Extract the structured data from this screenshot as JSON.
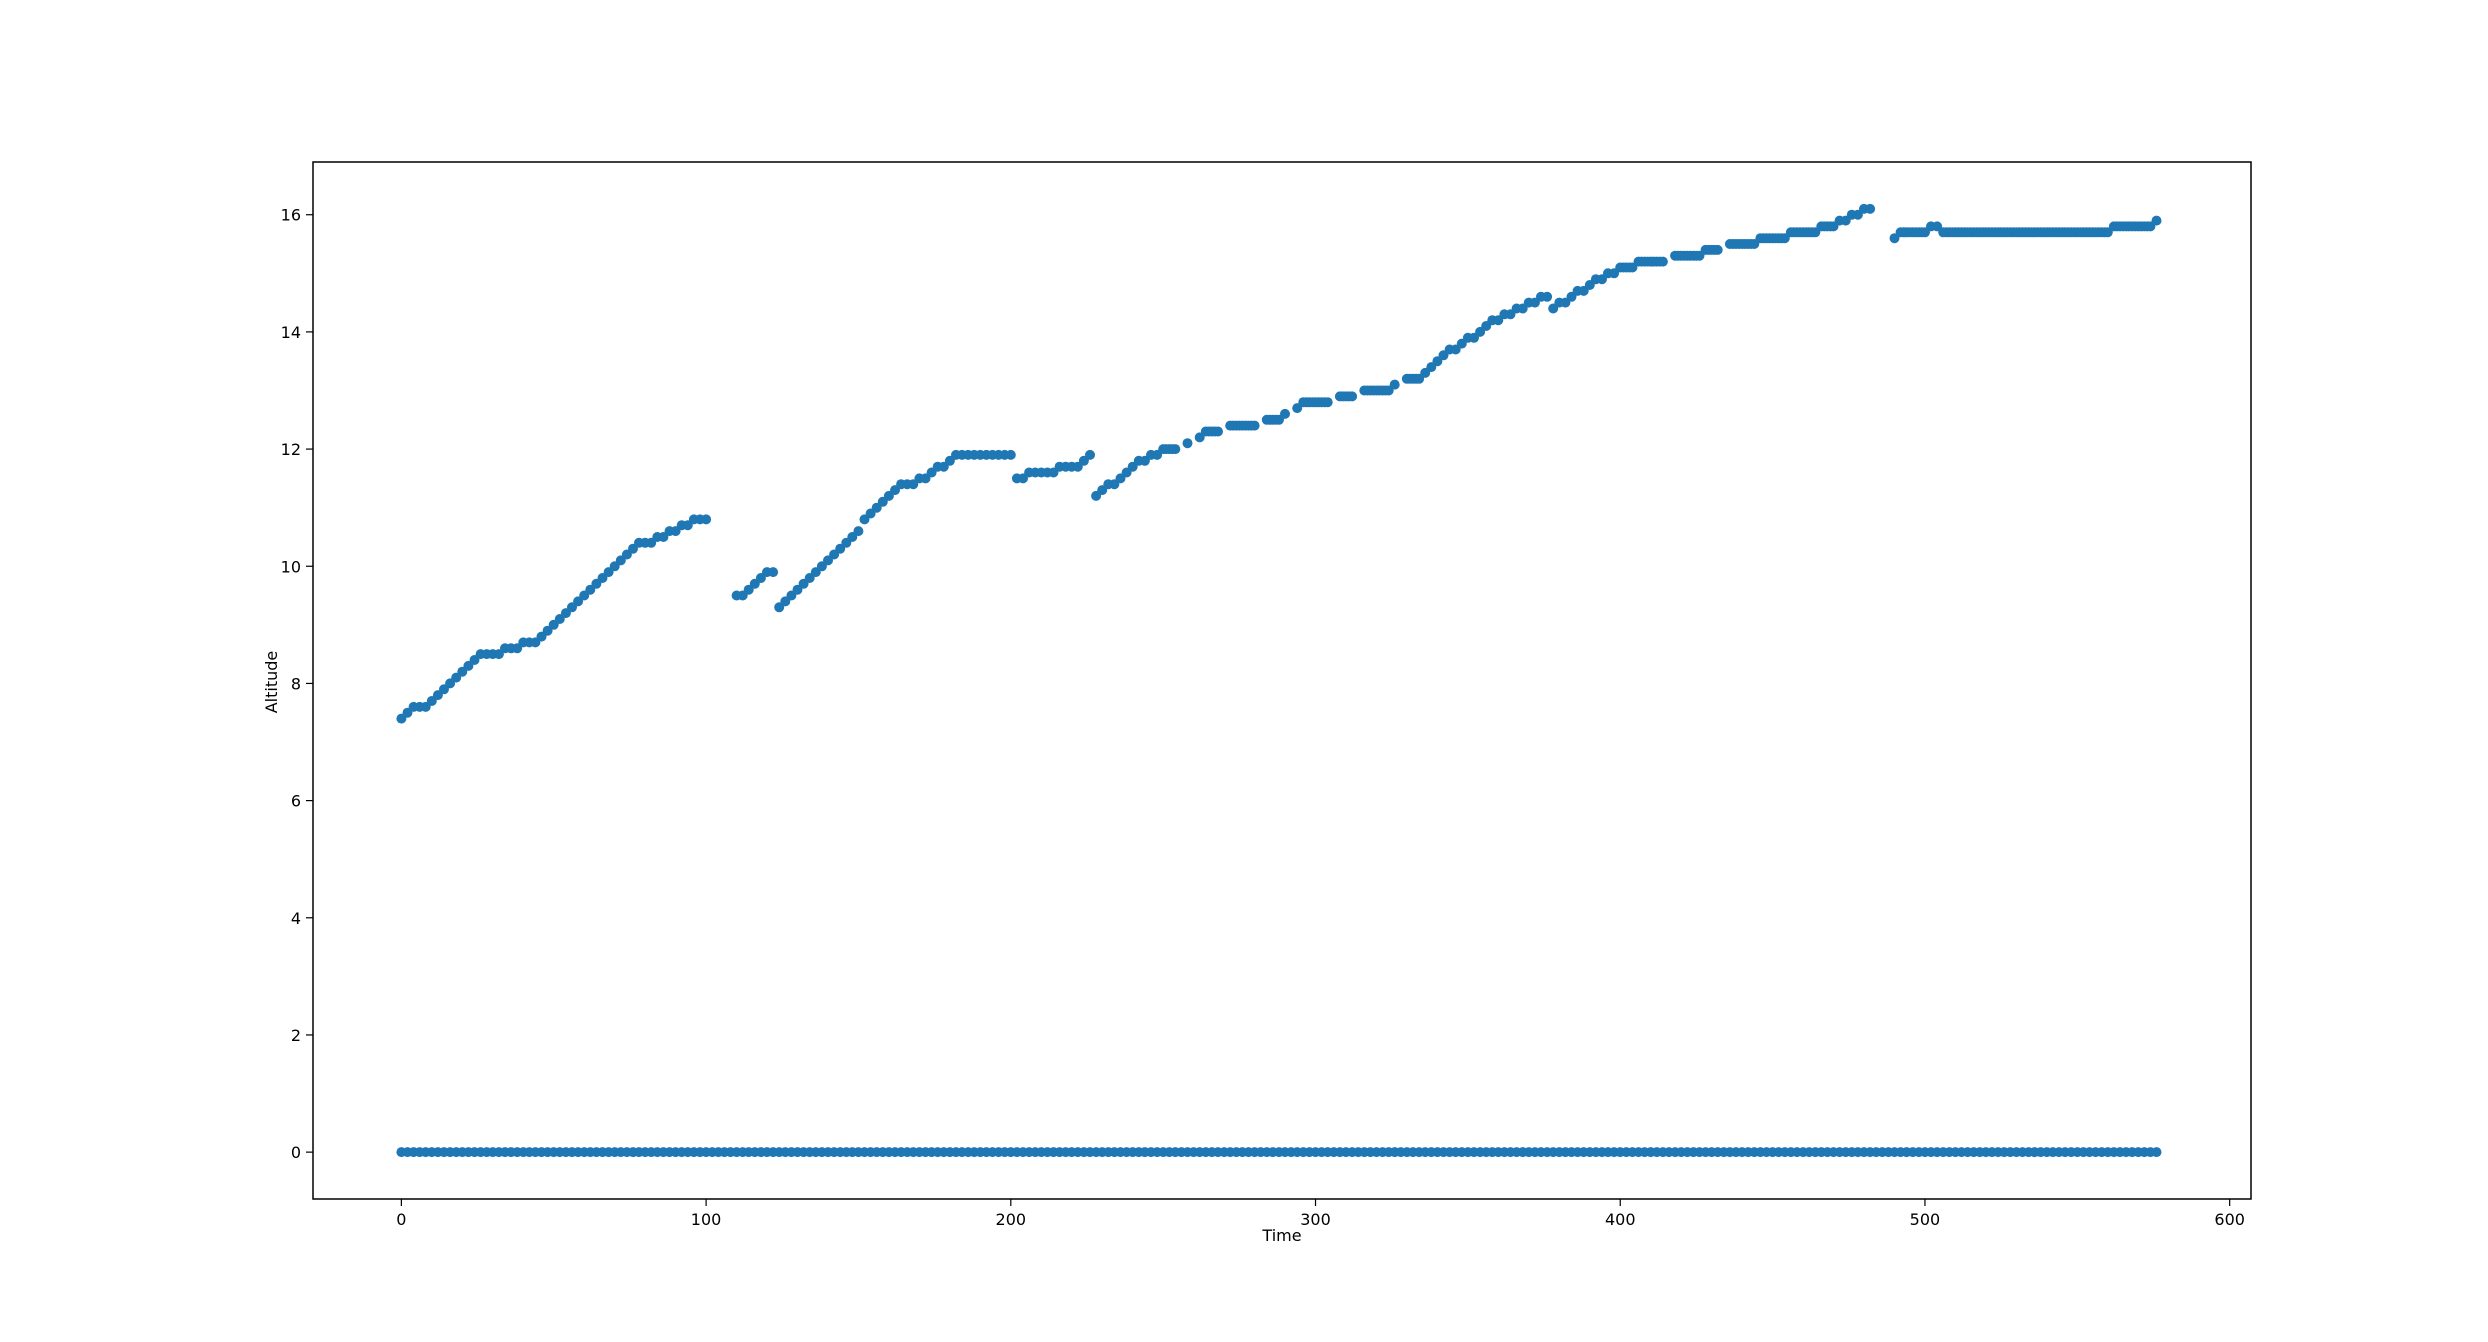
{
  "chart_data": {
    "type": "scatter",
    "xlabel": "Time",
    "ylabel": "Altitude",
    "xlim": [
      -29,
      607
    ],
    "ylim": [
      -0.8,
      16.9
    ],
    "xticks": [
      0,
      100,
      200,
      300,
      400,
      500,
      600
    ],
    "yticks": [
      0,
      2,
      4,
      6,
      8,
      10,
      12,
      14,
      16
    ],
    "grid": false,
    "marker_color": "#1f77b4",
    "series": [
      {
        "values_description_free": true,
        "points": [
          [
            0,
            0
          ],
          [
            576,
            0
          ],
          [
            0,
            7.4
          ],
          [
            2,
            7.5
          ],
          [
            4,
            7.6
          ],
          [
            6,
            7.6
          ],
          [
            8,
            7.6
          ],
          [
            10,
            7.7
          ],
          [
            12,
            7.8
          ],
          [
            14,
            7.9
          ],
          [
            16,
            8.0
          ],
          [
            18,
            8.1
          ],
          [
            20,
            8.2
          ],
          [
            22,
            8.3
          ],
          [
            24,
            8.4
          ],
          [
            26,
            8.5
          ],
          [
            28,
            8.5
          ],
          [
            30,
            8.5
          ],
          [
            32,
            8.5
          ],
          [
            34,
            8.6
          ],
          [
            36,
            8.6
          ],
          [
            38,
            8.6
          ],
          [
            40,
            8.7
          ],
          [
            42,
            8.7
          ],
          [
            44,
            8.7
          ],
          [
            46,
            8.8
          ],
          [
            48,
            8.9
          ],
          [
            50,
            9.0
          ],
          [
            52,
            9.1
          ],
          [
            54,
            9.2
          ],
          [
            56,
            9.3
          ],
          [
            58,
            9.4
          ],
          [
            60,
            9.5
          ],
          [
            62,
            9.6
          ],
          [
            64,
            9.7
          ],
          [
            66,
            9.8
          ],
          [
            68,
            9.9
          ],
          [
            70,
            10.0
          ],
          [
            72,
            10.1
          ],
          [
            74,
            10.2
          ],
          [
            76,
            10.3
          ],
          [
            78,
            10.4
          ],
          [
            80,
            10.4
          ],
          [
            82,
            10.4
          ],
          [
            84,
            10.5
          ],
          [
            86,
            10.5
          ],
          [
            88,
            10.6
          ],
          [
            90,
            10.6
          ],
          [
            92,
            10.7
          ],
          [
            94,
            10.7
          ],
          [
            96,
            10.8
          ],
          [
            98,
            10.8
          ],
          [
            100,
            10.8
          ],
          [
            110,
            9.5
          ],
          [
            112,
            9.5
          ],
          [
            114,
            9.6
          ],
          [
            116,
            9.7
          ],
          [
            118,
            9.8
          ],
          [
            120,
            9.9
          ],
          [
            122,
            9.9
          ],
          [
            124,
            9.3
          ],
          [
            126,
            9.4
          ],
          [
            128,
            9.5
          ],
          [
            130,
            9.6
          ],
          [
            132,
            9.7
          ],
          [
            134,
            9.8
          ],
          [
            136,
            9.9
          ],
          [
            138,
            10.0
          ],
          [
            140,
            10.1
          ],
          [
            142,
            10.2
          ],
          [
            144,
            10.3
          ],
          [
            146,
            10.4
          ],
          [
            148,
            10.5
          ],
          [
            150,
            10.6
          ],
          [
            152,
            10.8
          ],
          [
            154,
            10.9
          ],
          [
            156,
            11.0
          ],
          [
            158,
            11.1
          ],
          [
            160,
            11.2
          ],
          [
            162,
            11.3
          ],
          [
            164,
            11.4
          ],
          [
            166,
            11.4
          ],
          [
            168,
            11.4
          ],
          [
            170,
            11.5
          ],
          [
            172,
            11.5
          ],
          [
            174,
            11.6
          ],
          [
            176,
            11.7
          ],
          [
            178,
            11.7
          ],
          [
            180,
            11.8
          ],
          [
            182,
            11.9
          ],
          [
            184,
            11.9
          ],
          [
            186,
            11.9
          ],
          [
            188,
            11.9
          ],
          [
            190,
            11.9
          ],
          [
            192,
            11.9
          ],
          [
            194,
            11.9
          ],
          [
            196,
            11.9
          ],
          [
            198,
            11.9
          ],
          [
            200,
            11.9
          ],
          [
            202,
            11.5
          ],
          [
            204,
            11.5
          ],
          [
            206,
            11.6
          ],
          [
            208,
            11.6
          ],
          [
            210,
            11.6
          ],
          [
            212,
            11.6
          ],
          [
            214,
            11.6
          ],
          [
            216,
            11.7
          ],
          [
            218,
            11.7
          ],
          [
            220,
            11.7
          ],
          [
            222,
            11.7
          ],
          [
            224,
            11.8
          ],
          [
            226,
            11.9
          ],
          [
            228,
            11.2
          ],
          [
            230,
            11.3
          ],
          [
            232,
            11.4
          ],
          [
            234,
            11.4
          ],
          [
            236,
            11.5
          ],
          [
            238,
            11.6
          ],
          [
            240,
            11.7
          ],
          [
            242,
            11.8
          ],
          [
            244,
            11.8
          ],
          [
            246,
            11.9
          ],
          [
            248,
            11.9
          ],
          [
            250,
            12.0
          ],
          [
            254,
            12.0
          ],
          [
            258,
            12.1
          ],
          [
            262,
            12.2
          ],
          [
            264,
            12.3
          ],
          [
            268,
            12.3
          ],
          [
            272,
            12.4
          ],
          [
            276,
            12.4
          ],
          [
            280,
            12.4
          ],
          [
            284,
            12.5
          ],
          [
            288,
            12.5
          ],
          [
            290,
            12.6
          ],
          [
            294,
            12.7
          ],
          [
            296,
            12.8
          ],
          [
            300,
            12.8
          ],
          [
            304,
            12.8
          ],
          [
            308,
            12.9
          ],
          [
            312,
            12.9
          ],
          [
            316,
            13.0
          ],
          [
            320,
            13.0
          ],
          [
            324,
            13.0
          ],
          [
            326,
            13.1
          ],
          [
            330,
            13.2
          ],
          [
            334,
            13.2
          ],
          [
            336,
            13.3
          ],
          [
            338,
            13.4
          ],
          [
            340,
            13.5
          ],
          [
            342,
            13.6
          ],
          [
            344,
            13.7
          ],
          [
            346,
            13.7
          ],
          [
            348,
            13.8
          ],
          [
            350,
            13.9
          ],
          [
            352,
            13.9
          ],
          [
            354,
            14.0
          ],
          [
            356,
            14.1
          ],
          [
            358,
            14.2
          ],
          [
            360,
            14.2
          ],
          [
            362,
            14.3
          ],
          [
            364,
            14.3
          ],
          [
            366,
            14.4
          ],
          [
            368,
            14.4
          ],
          [
            370,
            14.5
          ],
          [
            372,
            14.5
          ],
          [
            374,
            14.6
          ],
          [
            376,
            14.6
          ],
          [
            378,
            14.4
          ],
          [
            380,
            14.5
          ],
          [
            382,
            14.5
          ],
          [
            384,
            14.6
          ],
          [
            386,
            14.7
          ],
          [
            388,
            14.7
          ],
          [
            390,
            14.8
          ],
          [
            392,
            14.9
          ],
          [
            394,
            14.9
          ],
          [
            396,
            15.0
          ],
          [
            398,
            15.0
          ],
          [
            400,
            15.1
          ],
          [
            404,
            15.1
          ],
          [
            406,
            15.2
          ],
          [
            410,
            15.2
          ],
          [
            414,
            15.2
          ],
          [
            418,
            15.3
          ],
          [
            422,
            15.3
          ],
          [
            426,
            15.3
          ],
          [
            428,
            15.4
          ],
          [
            432,
            15.4
          ],
          [
            436,
            15.5
          ],
          [
            440,
            15.5
          ],
          [
            444,
            15.5
          ],
          [
            446,
            15.6
          ],
          [
            450,
            15.6
          ],
          [
            454,
            15.6
          ],
          [
            456,
            15.7
          ],
          [
            460,
            15.7
          ],
          [
            464,
            15.7
          ],
          [
            466,
            15.8
          ],
          [
            470,
            15.8
          ],
          [
            472,
            15.9
          ],
          [
            474,
            15.9
          ],
          [
            476,
            16.0
          ],
          [
            478,
            16.0
          ],
          [
            480,
            16.1
          ],
          [
            482,
            16.1
          ],
          [
            490,
            15.6
          ],
          [
            492,
            15.7
          ],
          [
            496,
            15.7
          ],
          [
            500,
            15.7
          ],
          [
            502,
            15.8
          ],
          [
            504,
            15.8
          ],
          [
            506,
            15.7
          ],
          [
            510,
            15.7
          ],
          [
            520,
            15.7
          ],
          [
            530,
            15.7
          ],
          [
            540,
            15.7
          ],
          [
            550,
            15.7
          ],
          [
            560,
            15.7
          ],
          [
            562,
            15.8
          ],
          [
            566,
            15.8
          ],
          [
            570,
            15.8
          ],
          [
            574,
            15.8
          ],
          [
            576,
            15.9
          ]
        ],
        "zero_baseline": {
          "x_start": 0,
          "x_end": 576,
          "y": 0
        }
      }
    ]
  }
}
